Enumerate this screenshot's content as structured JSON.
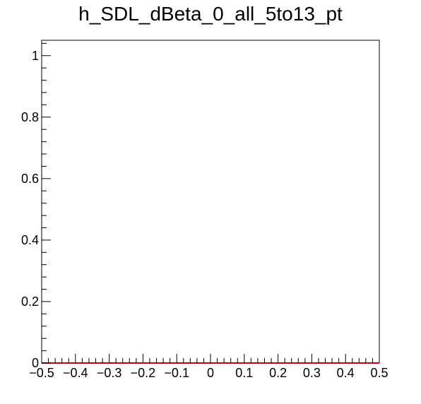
{
  "chart_data": {
    "type": "line",
    "title": "h_SDL_dBeta_0_all_5to13_pt",
    "xlabel": "",
    "ylabel": "",
    "xlim": [
      -0.5,
      0.5
    ],
    "ylim": [
      0,
      1.05
    ],
    "x_ticks": [
      -0.5,
      -0.4,
      -0.3,
      -0.2,
      -0.1,
      0,
      0.1,
      0.2,
      0.3,
      0.4,
      0.5
    ],
    "x_tick_labels": [
      "−0.5",
      "−0.4",
      "−0.3",
      "−0.2",
      "−0.1",
      "0",
      "0.1",
      "0.2",
      "0.3",
      "0.4",
      "0.5"
    ],
    "y_ticks": [
      0,
      0.2,
      0.4,
      0.6,
      0.8,
      1
    ],
    "y_tick_labels": [
      "0",
      "0.2",
      "0.4",
      "0.6",
      "0.8",
      "1"
    ],
    "grid": false,
    "legend": "none",
    "series": [
      {
        "color": "#cc0000",
        "x": [
          -0.5,
          0.5
        ],
        "y": [
          0,
          0
        ]
      }
    ]
  }
}
